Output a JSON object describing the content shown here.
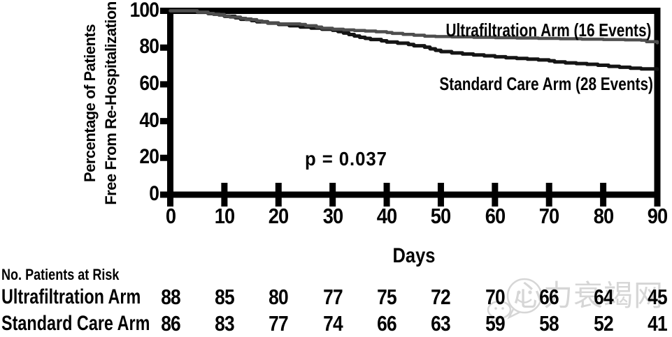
{
  "figure": {
    "y_axis_label_line1": "Percentage of Patients",
    "y_axis_label_line2": "Free From Re-Hospitalization",
    "x_axis_label": "Days",
    "p_value_text": "p = 0.037"
  },
  "chart_data": {
    "type": "line",
    "subtype": "kaplan-meier-step",
    "title": "",
    "xlabel": "Days",
    "ylabel": "Percentage of Patients Free From Re-Hospitalization",
    "xlim": [
      0,
      90
    ],
    "ylim": [
      0,
      100
    ],
    "x_ticks": [
      0,
      10,
      20,
      30,
      40,
      50,
      60,
      70,
      80,
      90
    ],
    "y_ticks": [
      0,
      20,
      40,
      60,
      80,
      100
    ],
    "grid": false,
    "legend_position": "inside-right",
    "annotation": "p = 0.037",
    "series": [
      {
        "name": "Ultrafiltration Arm (16 Events)",
        "events": 16,
        "color": "#4e4e4e",
        "points": [
          [
            0,
            100
          ],
          [
            4,
            100
          ],
          [
            5,
            99.3
          ],
          [
            7,
            98.6
          ],
          [
            8,
            98
          ],
          [
            10,
            97.2
          ],
          [
            11,
            96.6
          ],
          [
            13,
            95.9
          ],
          [
            14,
            95.2
          ],
          [
            16,
            94.5
          ],
          [
            17,
            93.9
          ],
          [
            18,
            93.2
          ],
          [
            20,
            92.9
          ],
          [
            24,
            92.6
          ],
          [
            25,
            91.9
          ],
          [
            27,
            91.2
          ],
          [
            28,
            90.5
          ],
          [
            30,
            90
          ],
          [
            32,
            89.6
          ],
          [
            34,
            89.3
          ],
          [
            36,
            89
          ],
          [
            38,
            88.6
          ],
          [
            40,
            88.2
          ],
          [
            41,
            87.7
          ],
          [
            43,
            87.2
          ],
          [
            45,
            86.7
          ],
          [
            47,
            86.2
          ],
          [
            49,
            86
          ],
          [
            52,
            85.8
          ],
          [
            56,
            85.6
          ],
          [
            60,
            85.4
          ],
          [
            64,
            85.2
          ],
          [
            68,
            85
          ],
          [
            72,
            84.8
          ],
          [
            76,
            84.6
          ],
          [
            80,
            84.4
          ],
          [
            84,
            84.2
          ],
          [
            87,
            84
          ],
          [
            88,
            83.2
          ],
          [
            90,
            82.6
          ]
        ]
      },
      {
        "name": "Standard Care Arm (28 Events)",
        "events": 28,
        "color": "#151515",
        "points": [
          [
            0,
            100
          ],
          [
            4,
            100
          ],
          [
            5,
            99.2
          ],
          [
            7,
            98.5
          ],
          [
            9,
            97.8
          ],
          [
            10,
            97
          ],
          [
            12,
            96.2
          ],
          [
            13,
            95.4
          ],
          [
            15,
            94.7
          ],
          [
            16,
            94
          ],
          [
            18,
            93.3
          ],
          [
            20,
            92.6
          ],
          [
            22,
            91.9
          ],
          [
            24,
            91.2
          ],
          [
            26,
            90.6
          ],
          [
            28,
            90
          ],
          [
            30,
            89.4
          ],
          [
            31,
            88.7
          ],
          [
            32,
            87.9
          ],
          [
            33,
            87.1
          ],
          [
            34,
            86.3
          ],
          [
            35,
            85.6
          ],
          [
            36,
            85
          ],
          [
            37,
            84.4
          ],
          [
            39,
            83.7
          ],
          [
            40,
            83
          ],
          [
            42,
            82.4
          ],
          [
            44,
            81.7
          ],
          [
            45,
            81
          ],
          [
            47,
            80.2
          ],
          [
            48,
            79.3
          ],
          [
            49,
            78.5
          ],
          [
            50,
            77.8
          ],
          [
            52,
            77.1
          ],
          [
            54,
            76.5
          ],
          [
            56,
            76
          ],
          [
            58,
            75.5
          ],
          [
            60,
            75
          ],
          [
            62,
            74.5
          ],
          [
            64,
            74.1
          ],
          [
            66,
            73.7
          ],
          [
            68,
            73.3
          ],
          [
            70,
            72.8
          ],
          [
            71,
            72.2
          ],
          [
            73,
            71.7
          ],
          [
            75,
            71.3
          ],
          [
            77,
            70.9
          ],
          [
            79,
            70.4
          ],
          [
            81,
            69.8
          ],
          [
            83,
            69.3
          ],
          [
            85,
            68.8
          ],
          [
            87,
            68.4
          ],
          [
            90,
            68.2
          ]
        ]
      }
    ]
  },
  "risk_table": {
    "title": "No. Patients at Risk",
    "days": [
      0,
      10,
      20,
      30,
      40,
      50,
      60,
      70,
      80,
      90
    ],
    "rows": [
      {
        "label": "Ultrafiltration Arm",
        "values": [
          88,
          85,
          80,
          77,
          75,
          72,
          70,
          66,
          64,
          45
        ]
      },
      {
        "label": "Standard Care Arm",
        "values": [
          86,
          83,
          77,
          74,
          66,
          63,
          59,
          58,
          52,
          41
        ]
      }
    ]
  },
  "watermark": {
    "text": "心力衰竭网",
    "icon": "wechat-chat-bubble-icon",
    "color": "#b5b5b5"
  }
}
